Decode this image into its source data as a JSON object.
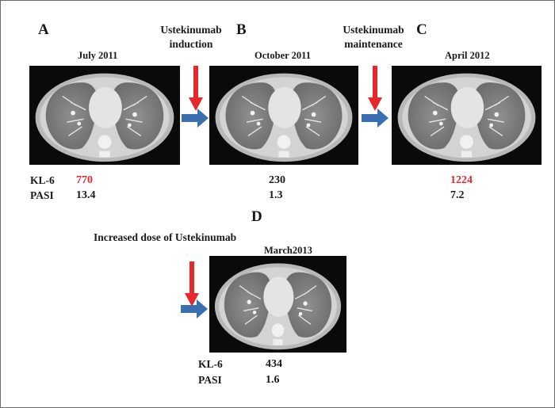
{
  "panels": {
    "a": {
      "letter": "A",
      "date": "July 2011"
    },
    "b": {
      "letter": "B",
      "date": "October 2011"
    },
    "c": {
      "letter": "C",
      "date": "April 2012"
    },
    "d": {
      "letter": "D",
      "date": "March2013"
    }
  },
  "treatments": {
    "induction": {
      "line1": "Ustekinumab",
      "line2": "induction"
    },
    "maintenance": {
      "line1": "Ustekinumab",
      "line2": "maintenance"
    },
    "increase": "Increased dose of Ustekinumab"
  },
  "labels": {
    "kl6": "KL-6",
    "pasi": "PASI"
  },
  "values": {
    "a": {
      "kl6": "770",
      "pasi": "13.4"
    },
    "b": {
      "kl6": "230",
      "pasi": "1.3"
    },
    "c": {
      "kl6": "1224",
      "pasi": "7.2"
    },
    "d": {
      "kl6": "434",
      "pasi": "1.6"
    }
  },
  "colors": {
    "highlight": "#e8272c",
    "arrow_down": "#e8272c",
    "arrow_right": "#3a6fb0"
  }
}
